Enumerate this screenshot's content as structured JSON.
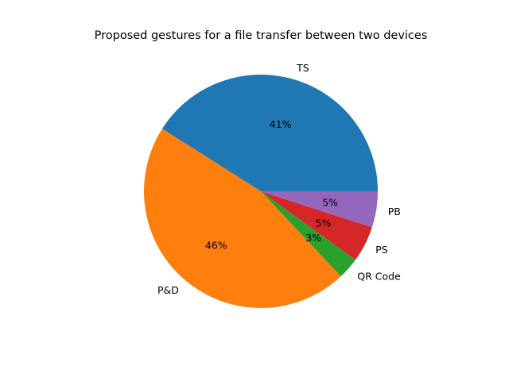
{
  "chart_data": {
    "type": "pie",
    "title": "Proposed gestures for a file transfer between two devices",
    "slices": [
      {
        "label": "TS",
        "value": 41,
        "pct_label": "41%",
        "color": "#1f77b4"
      },
      {
        "label": "P&D",
        "value": 46,
        "pct_label": "46%",
        "color": "#ff7f0e"
      },
      {
        "label": "QR Code",
        "value": 3,
        "pct_label": "3%",
        "color": "#2ca02c"
      },
      {
        "label": "PS",
        "value": 5,
        "pct_label": "5%",
        "color": "#d62728"
      },
      {
        "label": "PB",
        "value": 5,
        "pct_label": "5%",
        "color": "#9467bd"
      }
    ],
    "start_angle_deg": 0,
    "direction": "counterclockwise",
    "legend": false
  }
}
